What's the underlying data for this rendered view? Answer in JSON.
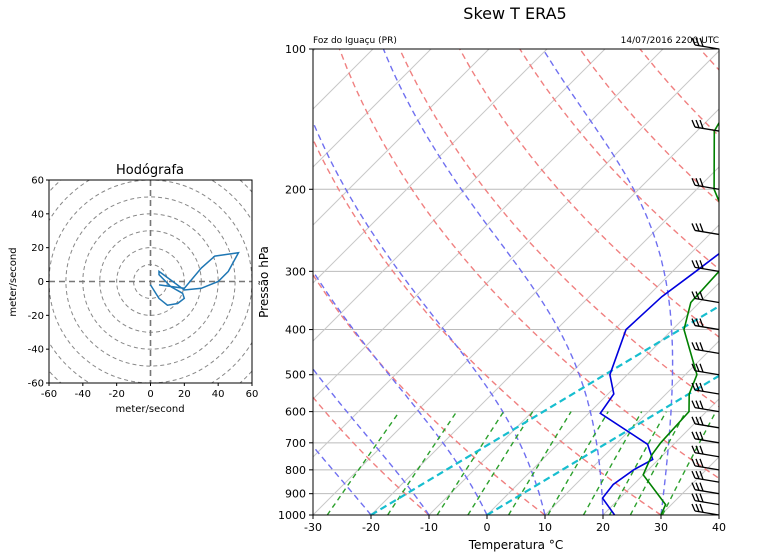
{
  "title": "Skew T ERA5",
  "location": "Foz do Iguaçu (PR)",
  "datetime": "14/07/2016 2200 UTC",
  "skewt": {
    "xlabel": "Temperatura °C",
    "ylabel": "Pressão hPa",
    "xlim": [
      -30,
      40
    ],
    "plim": [
      1000,
      100
    ],
    "xticks": [
      -30,
      -20,
      -10,
      0,
      10,
      20,
      30,
      40
    ],
    "pticks": [
      1000,
      900,
      800,
      700,
      600,
      500,
      400,
      300,
      200,
      100
    ]
  },
  "hodograph": {
    "title": "Hodógrafa",
    "xlabel": "meter/second",
    "ylabel": "meter/second",
    "lim": [
      -60,
      60
    ],
    "ticks": [
      -60,
      -40,
      -20,
      0,
      20,
      40,
      60
    ]
  },
  "colors": {
    "temperature": "#0000dd",
    "dewpoint": "#008000",
    "hodograph": "#1f77b4",
    "dry_adiabat": "#f08080",
    "moist_adiabat": "#7070f0",
    "mixing_ratio": "#2ca02c",
    "parcel": "#17becf"
  },
  "chart_data": [
    {
      "type": "line",
      "name": "skew-t",
      "x_units": "°C",
      "y_units": "hPa",
      "series": [
        {
          "role": "temperature",
          "points": [
            [
              22,
              1000
            ],
            [
              17,
              920
            ],
            [
              16.5,
              860
            ],
            [
              17.5,
              800
            ],
            [
              19,
              760
            ],
            [
              15.5,
              705
            ],
            [
              2,
              605
            ],
            [
              1,
              550
            ],
            [
              -3,
              500
            ],
            [
              -8,
              400
            ],
            [
              -7.5,
              340
            ],
            [
              -6,
              300
            ],
            [
              -4,
              250
            ],
            [
              -14,
              200
            ],
            [
              -23,
              150
            ],
            [
              -6,
              100
            ]
          ]
        },
        {
          "role": "dewpoint",
          "points": [
            [
              30,
              1000
            ],
            [
              29,
              950
            ],
            [
              20,
              820
            ],
            [
              18,
              740
            ],
            [
              17.5,
              700
            ],
            [
              17,
              600
            ],
            [
              14,
              550
            ],
            [
              12,
              500
            ],
            [
              2,
              400
            ],
            [
              -1.5,
              350
            ],
            [
              -2,
              300
            ],
            [
              -8,
              240
            ],
            [
              -17,
              200
            ],
            [
              -27,
              150
            ],
            [
              -33,
              100
            ]
          ]
        }
      ],
      "wind_barbs_hPa": [
        1000,
        950,
        900,
        850,
        800,
        750,
        700,
        650,
        600,
        550,
        500,
        450,
        400,
        350,
        300,
        250,
        200,
        150,
        100
      ]
    },
    {
      "type": "line",
      "name": "hodograph",
      "x_units": "m/s",
      "y_units": "m/s",
      "points": [
        [
          0,
          -2
        ],
        [
          5,
          -10
        ],
        [
          10,
          -14
        ],
        [
          16,
          -13
        ],
        [
          20,
          -10
        ],
        [
          19,
          -7
        ],
        [
          12,
          -3
        ],
        [
          5,
          4
        ],
        [
          5,
          6
        ],
        [
          20,
          -5
        ],
        [
          30,
          -4
        ],
        [
          40,
          0
        ],
        [
          46,
          6
        ],
        [
          52,
          17
        ],
        [
          38,
          15
        ],
        [
          30,
          8
        ],
        [
          20,
          -4
        ],
        [
          5,
          -2
        ]
      ]
    }
  ]
}
